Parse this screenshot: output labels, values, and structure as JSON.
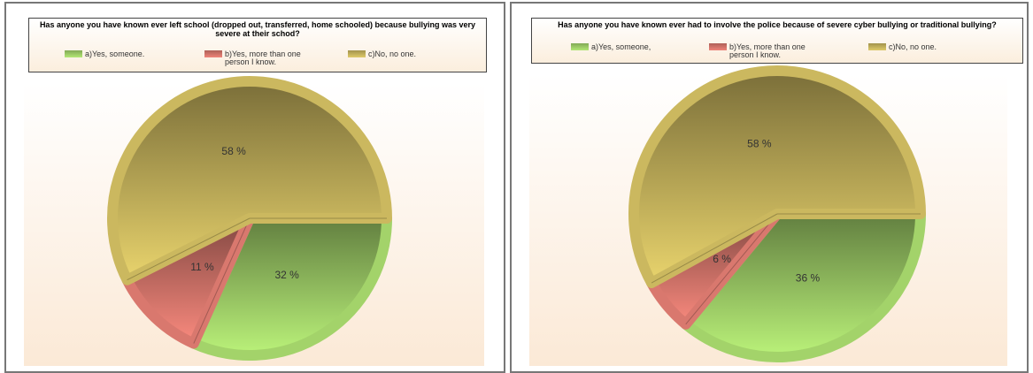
{
  "chart_data": [
    {
      "type": "pie",
      "title": "Has anyone you have known ever left school (dropped out, transferred, home schooled) because bullying was very severe at their schod?",
      "categories": [
        "a)Yes, someone.",
        "b)Yes, more than one person I know.",
        "c)No, no one."
      ],
      "values": [
        32,
        11,
        58
      ],
      "value_labels": [
        "32 %",
        "11 %",
        "58 %"
      ],
      "colors": [
        "#a3d36a",
        "#d9786e",
        "#cbb85f"
      ]
    },
    {
      "type": "pie",
      "title": "Has anyone you have known ever had to involve the police because of severe cyber bullying or traditional bullying?",
      "categories": [
        "a)Yes, someone,",
        "b)Yes, more than one person I know.",
        "c)No, no one."
      ],
      "values": [
        36,
        6,
        58
      ],
      "value_labels": [
        "36 %",
        "6 %",
        "58 %"
      ],
      "colors": [
        "#a3d36a",
        "#d9786e",
        "#cbb85f"
      ]
    }
  ]
}
